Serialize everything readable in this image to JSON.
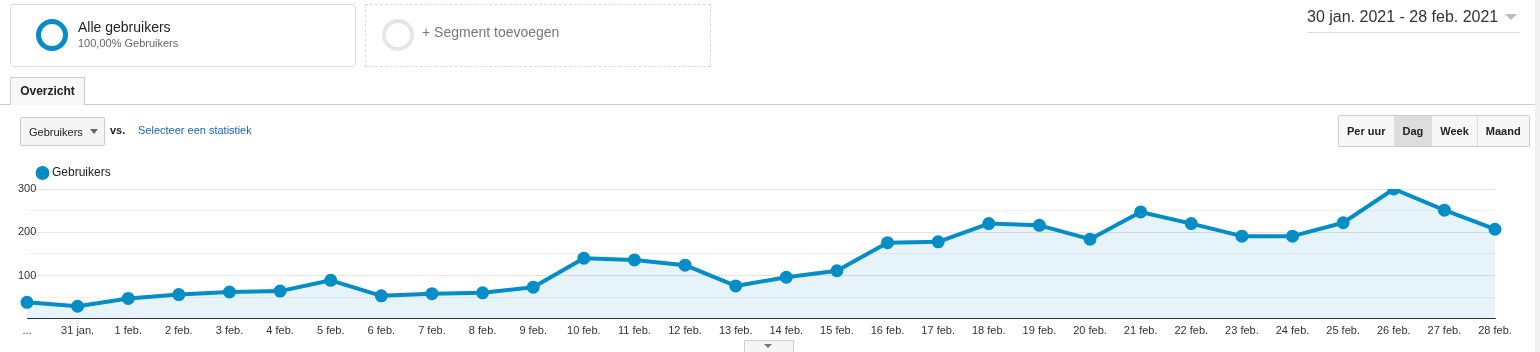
{
  "chart_data": {
    "type": "area",
    "categories": [
      "...",
      "31 jan.",
      "1 feb.",
      "2 feb.",
      "3 feb.",
      "4 feb.",
      "5 feb.",
      "6 feb.",
      "7 feb.",
      "8 feb.",
      "9 feb.",
      "10 feb.",
      "11 feb.",
      "12 feb.",
      "13 feb.",
      "14 feb.",
      "15 feb.",
      "16 feb.",
      "17 feb.",
      "18 feb.",
      "19 feb.",
      "20 feb.",
      "21 feb.",
      "22 feb.",
      "23 feb.",
      "24 feb.",
      "25 feb.",
      "26 feb.",
      "27 feb.",
      "28 feb."
    ],
    "series": [
      {
        "name": "Gebruikers",
        "color": "#058dc7",
        "values": [
          38,
          29,
          47,
          56,
          62,
          64,
          89,
          53,
          58,
          60,
          73,
          140,
          136,
          124,
          76,
          96,
          111,
          176,
          178,
          220,
          216,
          184,
          247,
          220,
          191,
          191,
          222,
          300,
          251,
          207
        ]
      }
    ],
    "ylim": [
      0,
      300
    ],
    "yticks": [
      {
        "value": 0,
        "label": null
      },
      {
        "value": 50,
        "label": null
      },
      100,
      {
        "value": 150,
        "label": null
      },
      200,
      {
        "value": 250,
        "label": null
      },
      300
    ],
    "grid": "y",
    "legend": "top left",
    "marker": "circle",
    "line_style": "solid",
    "annotations": [
      "Alle gebruikers",
      "100,00% Gebruikers",
      "+ Segment toevoegen",
      "Overzicht",
      "Gebruikers",
      "vs.",
      "Selecteer een statistiek",
      "Per uur",
      "Dag",
      "Week",
      "Maand",
      "30 jan. 2021 - 28 feb. 2021"
    ]
  }
}
